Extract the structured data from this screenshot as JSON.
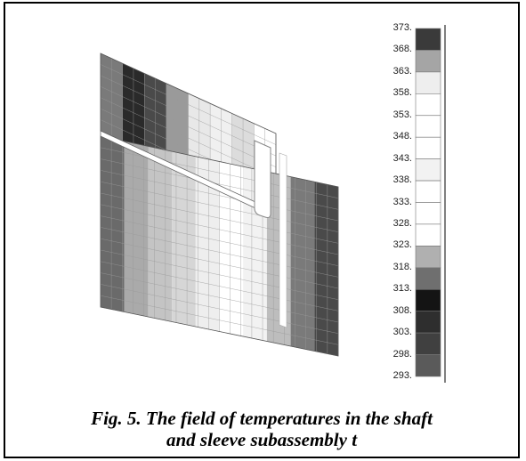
{
  "figure": {
    "caption_line1": "Fig. 5. The field of temperatures in the shaft",
    "caption_line2": "and sleeve subassembly t"
  },
  "chart_data": {
    "type": "heatmap",
    "title": "",
    "colorbar": {
      "ticks": [
        "373.",
        "368.",
        "363.",
        "358.",
        "353.",
        "348.",
        "343.",
        "338.",
        "333.",
        "328.",
        "323.",
        "318.",
        "313.",
        "308.",
        "303.",
        "298.",
        "293."
      ],
      "band_colors": [
        "#3a3a3a",
        "#a5a5a5",
        "#eeeeee",
        "#ffffff",
        "#ffffff",
        "#ffffff",
        "#f2f2f2",
        "#ffffff",
        "#ffffff",
        "#ffffff",
        "#b0b0b0",
        "#6f6f6f",
        "#141414",
        "#2e2e2e",
        "#404040",
        "#5a5a5a"
      ]
    },
    "field_bands_upper": [
      "#7a7a7a",
      "#2a2a2a",
      "#4a4a4a",
      "#9a9a9a",
      "#e8e8e8",
      "#f0f0f0",
      "#dcdcdc",
      "#ffffff"
    ],
    "field_bands_lower": [
      "#6a6a6a",
      "#aaaaaa",
      "#c4c4c4",
      "#d6d6d6",
      "#eeeeee",
      "#ffffff",
      "#f2f2f2",
      "#bdbdbd",
      "#7a7a7a",
      "#4a4a4a"
    ]
  }
}
